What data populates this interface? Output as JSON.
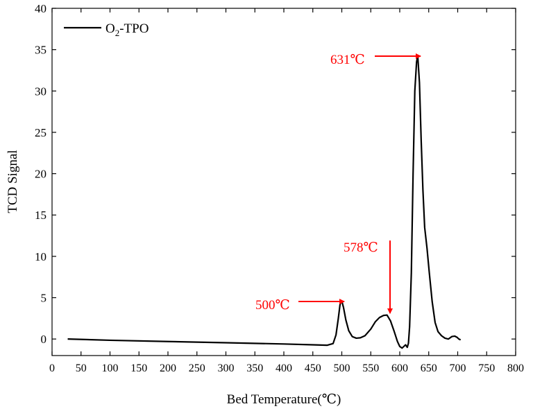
{
  "chart_data": {
    "type": "line",
    "xlabel": "Bed Temperature(℃)",
    "ylabel": "TCD Signal",
    "xlim": [
      0,
      800
    ],
    "ylim": [
      -2,
      40
    ],
    "xticks": [
      0,
      50,
      100,
      150,
      200,
      250,
      300,
      350,
      400,
      450,
      500,
      550,
      600,
      650,
      700,
      750,
      800
    ],
    "yticks": [
      0,
      5,
      10,
      15,
      20,
      25,
      30,
      35,
      40
    ],
    "grid": false,
    "legend_position": "top-left",
    "series": [
      {
        "name_main": "O",
        "name_sub": "2",
        "name_rest": "-TPO",
        "color": "#000000",
        "x": [
          27,
          100,
          200,
          300,
          400,
          450,
          475,
          485,
          490,
          494,
          497,
          500,
          503,
          507,
          512,
          518,
          525,
          532,
          540,
          550,
          558,
          565,
          572,
          578,
          584,
          590,
          596,
          600,
          604,
          607,
          610,
          613,
          615,
          617,
          620,
          623,
          626,
          629,
          631,
          634,
          637,
          640,
          643,
          647,
          651,
          656,
          661,
          666,
          672,
          678,
          684,
          690,
          695,
          699,
          702,
          705
        ],
        "y": [
          0.0,
          -0.15,
          -0.3,
          -0.45,
          -0.6,
          -0.7,
          -0.75,
          -0.55,
          0.5,
          2.5,
          4.2,
          4.6,
          3.8,
          2.3,
          1.0,
          0.3,
          0.1,
          0.15,
          0.4,
          1.2,
          2.1,
          2.6,
          2.85,
          2.9,
          2.2,
          1.0,
          -0.3,
          -0.9,
          -1.1,
          -0.9,
          -0.7,
          -1.0,
          -0.5,
          1.5,
          8.0,
          20.0,
          30.0,
          33.5,
          34.3,
          31.0,
          24.0,
          18.0,
          13.5,
          11.0,
          8.0,
          4.5,
          2.0,
          0.9,
          0.4,
          0.1,
          0.0,
          0.3,
          0.35,
          0.2,
          0.0,
          -0.1
        ]
      }
    ],
    "annotations": [
      {
        "id": "peak-500",
        "label": "500℃",
        "x": 500,
        "y": 4.6,
        "color": "#ff0000"
      },
      {
        "id": "peak-578",
        "label": "578℃",
        "x": 578,
        "y": 2.9,
        "color": "#ff0000"
      },
      {
        "id": "peak-631",
        "label": "631℃",
        "x": 631,
        "y": 34.3,
        "color": "#ff0000"
      }
    ]
  }
}
